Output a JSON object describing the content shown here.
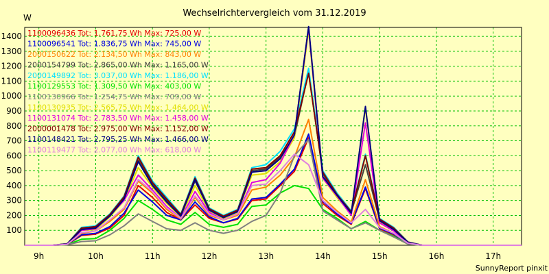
{
  "chart_data": {
    "type": "line",
    "title": "Wechselrichtervergleich vom 31.12.2019",
    "ylabel": "W",
    "footer": "SunnyReport pinxit",
    "ylim": [
      0,
      1460
    ],
    "xlim": [
      8.75,
      17.5
    ],
    "yticks": [
      100,
      200,
      300,
      400,
      500,
      600,
      700,
      800,
      900,
      1000,
      1100,
      1200,
      1300,
      1400
    ],
    "xticks": [
      {
        "v": 9,
        "label": "9h"
      },
      {
        "v": 10,
        "label": "10h"
      },
      {
        "v": 11,
        "label": "11h"
      },
      {
        "v": 12,
        "label": "12h"
      },
      {
        "v": 13,
        "label": "13h"
      },
      {
        "v": 14,
        "label": "14h"
      },
      {
        "v": 15,
        "label": "15h"
      },
      {
        "v": 16,
        "label": "16h"
      },
      {
        "v": 17,
        "label": "17h"
      }
    ],
    "grid": true,
    "grid_color": "#00c000",
    "background": "#ffffc0",
    "x": [
      8.75,
      9.0,
      9.25,
      9.5,
      9.75,
      10.0,
      10.25,
      10.5,
      10.75,
      11.0,
      11.25,
      11.5,
      11.75,
      12.0,
      12.25,
      12.5,
      12.75,
      13.0,
      13.25,
      13.5,
      13.75,
      14.0,
      14.25,
      14.5,
      14.75,
      15.0,
      15.25,
      15.5,
      15.75,
      16.0,
      16.25,
      16.5,
      16.75,
      17.0,
      17.25,
      17.5
    ],
    "series": [
      {
        "name": "1100096436 Tot: 1.761,75 Wh Max: 725,00 W",
        "color": "#e00000",
        "values": [
          0,
          0,
          0,
          5,
          65,
          75,
          115,
          200,
          400,
          320,
          220,
          170,
          270,
          180,
          150,
          175,
          300,
          310,
          400,
          495,
          720,
          280,
          200,
          140,
          380,
          110,
          70,
          10,
          0,
          0,
          0,
          0,
          0,
          0,
          0,
          0
        ]
      },
      {
        "name": "1100096541 Tot: 1.836,75 Wh Max: 745,00 W",
        "color": "#0000e0",
        "values": [
          0,
          0,
          0,
          6,
          70,
          80,
          125,
          215,
          370,
          290,
          200,
          170,
          290,
          190,
          150,
          180,
          310,
          320,
          410,
          510,
          745,
          295,
          210,
          145,
          390,
          115,
          75,
          12,
          0,
          0,
          0,
          0,
          0,
          0,
          0,
          0
        ]
      },
      {
        "name": "2000150622 Tot: 2.134,50 Wh Max: 843,00 W",
        "color": "#ff8000",
        "values": [
          0,
          0,
          0,
          6,
          80,
          95,
          160,
          240,
          430,
          350,
          240,
          175,
          320,
          200,
          170,
          200,
          370,
          390,
          470,
          590,
          843,
          320,
          230,
          155,
          440,
          125,
          80,
          14,
          0,
          0,
          0,
          0,
          0,
          0,
          0,
          0
        ]
      },
      {
        "name": "2000154799 Tot: 2.865,00 Wh Max: 1.165,00 W",
        "color": "#404040",
        "values": [
          0,
          0,
          0,
          10,
          110,
          120,
          200,
          320,
          570,
          410,
          300,
          200,
          430,
          240,
          190,
          230,
          500,
          510,
          590,
          730,
          1165,
          480,
          330,
          220,
          540,
          170,
          110,
          20,
          0,
          0,
          0,
          0,
          0,
          0,
          0,
          0
        ]
      },
      {
        "name": "2000149892 Tot: 3.037,00 Wh Max: 1.186,00 W",
        "color": "#00e0ff",
        "values": [
          0,
          0,
          0,
          10,
          120,
          130,
          210,
          330,
          600,
          430,
          320,
          210,
          460,
          250,
          200,
          240,
          520,
          540,
          630,
          780,
          1186,
          500,
          350,
          230,
          610,
          180,
          120,
          22,
          0,
          0,
          0,
          0,
          0,
          0,
          0,
          0
        ]
      },
      {
        "name": "1100129553 Tot: 1.309,50 Wh Max: 403,00 W",
        "color": "#00e000",
        "values": [
          0,
          0,
          0,
          4,
          40,
          45,
          100,
          180,
          300,
          240,
          170,
          140,
          220,
          140,
          120,
          140,
          260,
          270,
          350,
          400,
          380,
          240,
          180,
          110,
          160,
          100,
          60,
          8,
          0,
          0,
          0,
          0,
          0,
          0,
          0,
          0
        ]
      },
      {
        "name": "1100130966 Tot: 1.254,75 Wh Max: 709,00 W",
        "color": "#808080",
        "values": [
          0,
          0,
          0,
          4,
          25,
          30,
          70,
          130,
          210,
          160,
          110,
          100,
          150,
          100,
          80,
          100,
          160,
          200,
          350,
          600,
          709,
          230,
          170,
          110,
          150,
          100,
          55,
          8,
          0,
          0,
          0,
          0,
          0,
          0,
          0,
          0
        ]
      },
      {
        "name": "1100130935 Tot: 2.565,75 Wh Max: 1.464,00 W",
        "color": "#e0e000",
        "values": [
          0,
          0,
          0,
          8,
          100,
          105,
          190,
          300,
          520,
          390,
          280,
          190,
          400,
          230,
          180,
          220,
          470,
          480,
          560,
          720,
          1440,
          450,
          320,
          210,
          920,
          160,
          100,
          18,
          0,
          0,
          0,
          0,
          0,
          0,
          0,
          0
        ]
      },
      {
        "name": "1100131074 Tot: 2.783,50 Wh Max: 1.458,00 W",
        "color": "#e000e0",
        "values": [
          0,
          0,
          0,
          8,
          100,
          110,
          200,
          300,
          470,
          370,
          260,
          180,
          360,
          220,
          170,
          210,
          420,
          440,
          550,
          740,
          1458,
          450,
          330,
          200,
          820,
          150,
          95,
          18,
          0,
          0,
          0,
          0,
          0,
          0,
          0,
          0
        ]
      },
      {
        "name": "2000001478 Tot: 2.975,00 Wh Max: 1.152,00 W",
        "color": "#800000",
        "values": [
          0,
          0,
          0,
          10,
          115,
          125,
          205,
          325,
          590,
          420,
          310,
          205,
          450,
          245,
          195,
          235,
          510,
          520,
          600,
          760,
          1152,
          490,
          340,
          225,
          600,
          175,
          115,
          21,
          0,
          0,
          0,
          0,
          0,
          0,
          0,
          0
        ]
      },
      {
        "name": "1100148421 Tot: 2.795,25 Wh Max: 1.466,00 W",
        "color": "#000080",
        "values": [
          0,
          0,
          0,
          9,
          105,
          115,
          195,
          310,
          560,
          400,
          290,
          195,
          440,
          235,
          185,
          225,
          490,
          500,
          580,
          740,
          1466,
          460,
          335,
          215,
          930,
          165,
          105,
          19,
          0,
          0,
          0,
          0,
          0,
          0,
          0,
          0
        ]
      },
      {
        "name": "1100119477 Tot: 2.077,00 Wh Max: 618,00 W",
        "color": "#e080e0",
        "values": [
          0,
          0,
          0,
          7,
          85,
          95,
          170,
          250,
          440,
          360,
          250,
          180,
          330,
          210,
          170,
          210,
          400,
          410,
          500,
          610,
          540,
          300,
          220,
          150,
          240,
          120,
          80,
          14,
          0,
          0,
          0,
          0,
          0,
          0,
          0,
          0
        ]
      }
    ]
  }
}
